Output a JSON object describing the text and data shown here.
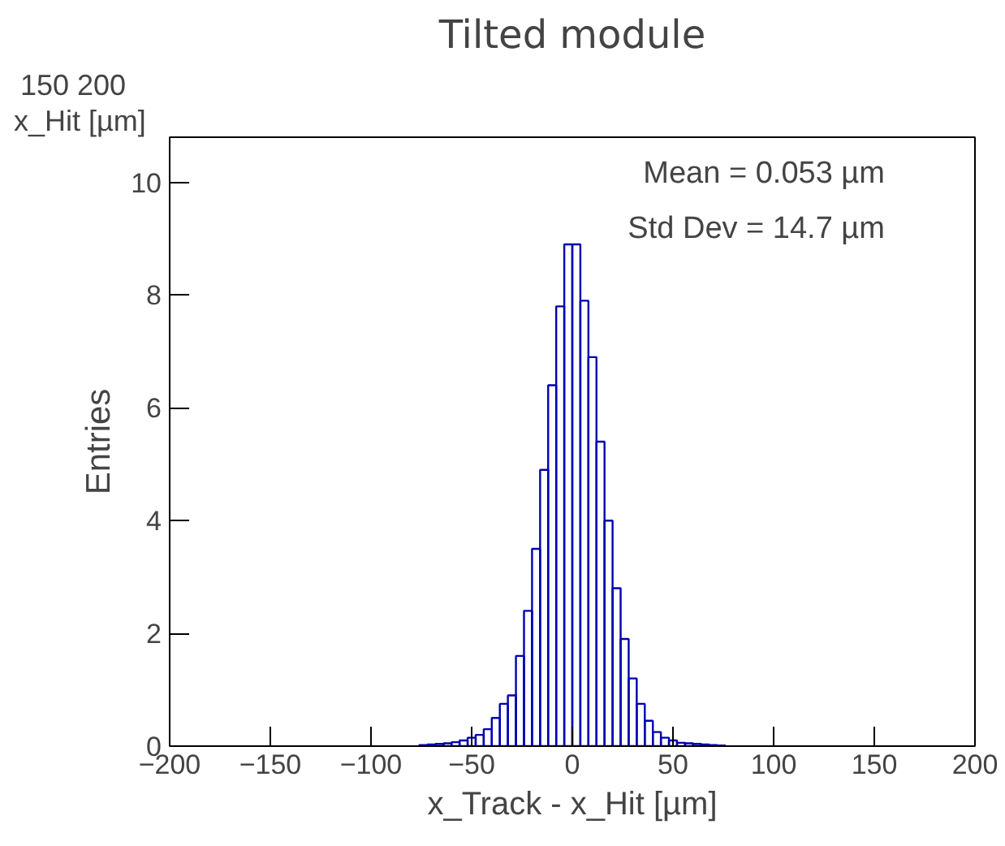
{
  "chart_data": {
    "type": "histogram",
    "title": "Tilted module",
    "xlabel": "x_Track - x_Hit [µm]",
    "ylabel": "Entries",
    "annotations": [
      "Mean = 0.053   µm",
      "Std Dev = 14.7   µm",
      "150    200",
      "x_Hit [µm]"
    ],
    "bins": [
      -76,
      -72,
      -68,
      -64,
      -60,
      -56,
      -52,
      -48,
      -44,
      -40,
      -36,
      -32,
      -28,
      -24,
      -20,
      -16,
      -12,
      -8,
      -4,
      0,
      4,
      8,
      12,
      16,
      20,
      24,
      28,
      32,
      36,
      40,
      44,
      48,
      52,
      56,
      60,
      64,
      68,
      72,
      76
    ],
    "values": [
      0.02,
      0.03,
      0.04,
      0.05,
      0.07,
      0.1,
      0.15,
      0.2,
      0.3,
      0.5,
      0.75,
      0.9,
      1.6,
      2.4,
      3.5,
      4.9,
      6.4,
      7.8,
      8.9,
      8.9,
      7.9,
      6.9,
      5.4,
      4.0,
      2.8,
      1.9,
      1.2,
      0.75,
      0.45,
      0.25,
      0.15,
      0.1,
      0.06,
      0.05,
      0.04,
      0.03,
      0.02,
      0.01
    ],
    "color": "#0000b0",
    "xlim": [
      -200,
      200
    ],
    "ylim": [
      0,
      10.8
    ],
    "xticks": [
      {
        "value": -200,
        "label": "−200"
      },
      {
        "value": -150,
        "label": "−150"
      },
      {
        "value": -100,
        "label": "−100"
      },
      {
        "value": -50,
        "label": "−50"
      },
      0,
      50,
      100,
      150,
      200
    ],
    "yticks": [
      0,
      2,
      4,
      6,
      8,
      10
    ],
    "grid": false
  }
}
